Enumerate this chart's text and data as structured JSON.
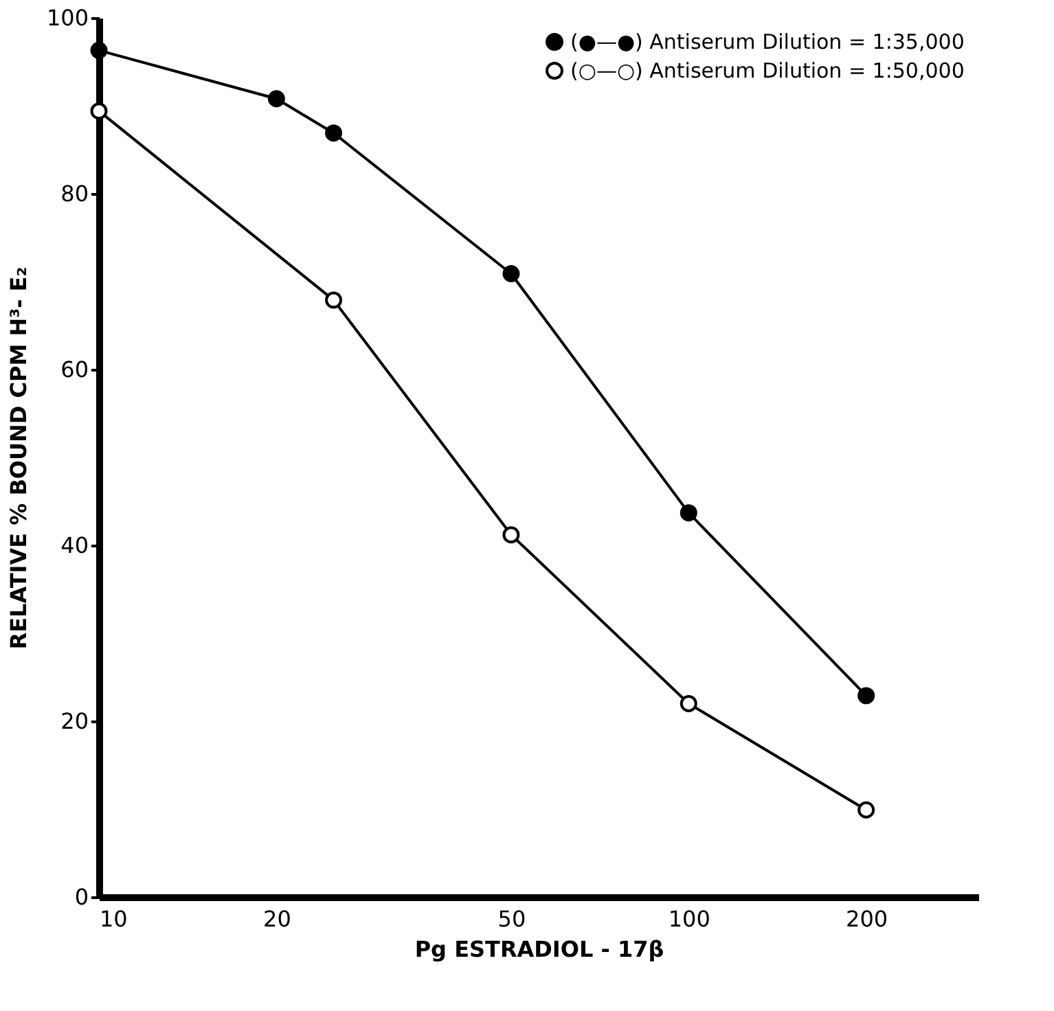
{
  "chart_data": {
    "type": "line",
    "xlabel": "Pg ESTRADIOL - 17β",
    "ylabel": "RELATIVE % BOUND CPM H³- E₂",
    "log": "x",
    "xlim": [
      10,
      310
    ],
    "xticks": [
      10,
      20,
      50,
      100,
      200
    ],
    "ylim": [
      0,
      100
    ],
    "yticks": [
      0,
      20,
      40,
      60,
      80,
      100
    ],
    "grid": false,
    "legend": "top right",
    "marker": "circle",
    "line_style": "solid",
    "series": [
      {
        "name": "(●—●) Antiserum Dilution = 1:35,000",
        "color": "#000000",
        "x": [
          10,
          20,
          25,
          50,
          100,
          200
        ],
        "values": [
          96.3,
          90.8,
          86.9,
          70.9,
          43.7,
          22.9
        ]
      },
      {
        "name": "(○—○) Antiserum Dilution = 1:50,000",
        "color": "#ffffff",
        "x": [
          10,
          25,
          50,
          100,
          200
        ],
        "values": [
          89.4,
          67.9,
          41.2,
          22.0,
          9.9
        ]
      }
    ]
  }
}
